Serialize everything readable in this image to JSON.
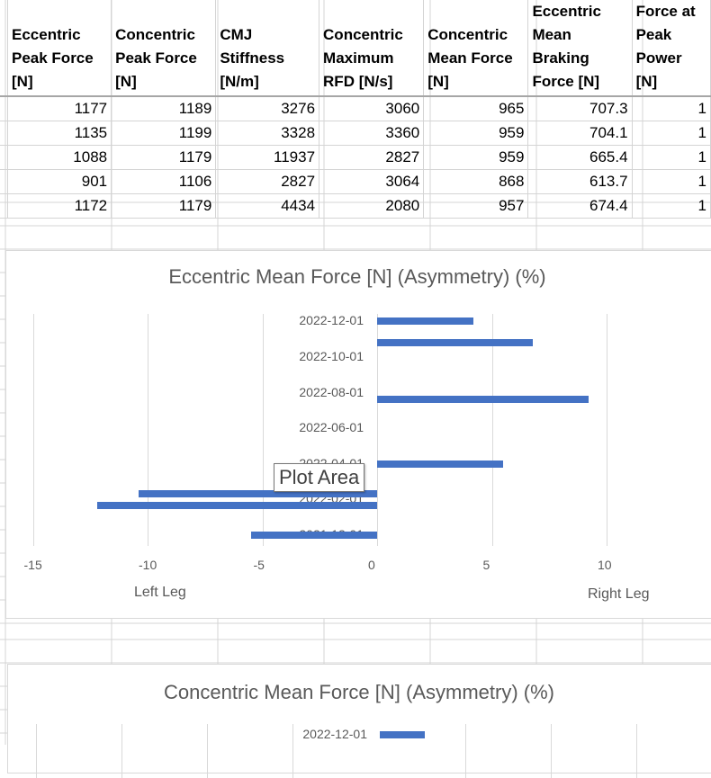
{
  "sheet": {
    "headers": [
      "Eccentric Peak Force [N]",
      "Concentric Peak Force [N]",
      "CMJ Stiffness [N/m]",
      "Concentric Maximum RFD [N/s]",
      "Concentric Mean Force [N]",
      "Eccentric Mean Braking Force [N]",
      "Force at Peak Power [N]"
    ],
    "rows": [
      [
        "1177",
        "1189",
        "3276",
        "3060",
        "965",
        "707.3",
        "1"
      ],
      [
        "1135",
        "1199",
        "3328",
        "3360",
        "959",
        "704.1",
        "1"
      ],
      [
        "1088",
        "1179",
        "11937",
        "2827",
        "959",
        "665.4",
        "1"
      ],
      [
        "901",
        "1106",
        "2827",
        "3064",
        "868",
        "613.7",
        "1"
      ],
      [
        "1172",
        "1179",
        "4434",
        "2080",
        "957",
        "674.4",
        "1"
      ]
    ]
  },
  "chart1": {
    "title": "Eccentric Mean Force [N] (Asymmetry) (%)",
    "left_label": "Left Leg",
    "right_label": "Right Leg",
    "tooltip": "Plot Area"
  },
  "chart2": {
    "title": "Concentric Mean Force [N] (Asymmetry) (%)",
    "first_label": "2022-12-01"
  },
  "chart_data": [
    {
      "type": "bar",
      "orientation": "horizontal",
      "title": "Eccentric Mean Force [N] (Asymmetry) (%)",
      "xlim": [
        -15,
        15
      ],
      "x_ticks": [
        "-15",
        "-10",
        "-5",
        "0",
        "5",
        "10"
      ],
      "y_tick_labels": [
        "2022-12-01",
        "2022-10-01",
        "2022-08-01",
        "2022-06-01",
        "2022-04-01",
        "2022-02-01",
        "2021-12-01"
      ],
      "bars": [
        {
          "date": "2022-12-01",
          "value": 4.2
        },
        {
          "date": "2022-10-25",
          "value": 6.8
        },
        {
          "date": "2022-07-20",
          "value": 9.2
        },
        {
          "date": "2022-04-01",
          "value": 5.5
        },
        {
          "date": "2022-02-10",
          "value": -10.4
        },
        {
          "date": "2022-01-20",
          "value": -12.2
        },
        {
          "date": "2021-12-01",
          "value": -5.5
        }
      ]
    },
    {
      "type": "bar",
      "orientation": "horizontal",
      "title": "Concentric Mean Force [N] (Asymmetry) (%)",
      "y_tick_labels": [
        "2022-12-01"
      ],
      "bars": [
        {
          "date": "2022-12-01",
          "value": 2.0
        }
      ]
    }
  ]
}
